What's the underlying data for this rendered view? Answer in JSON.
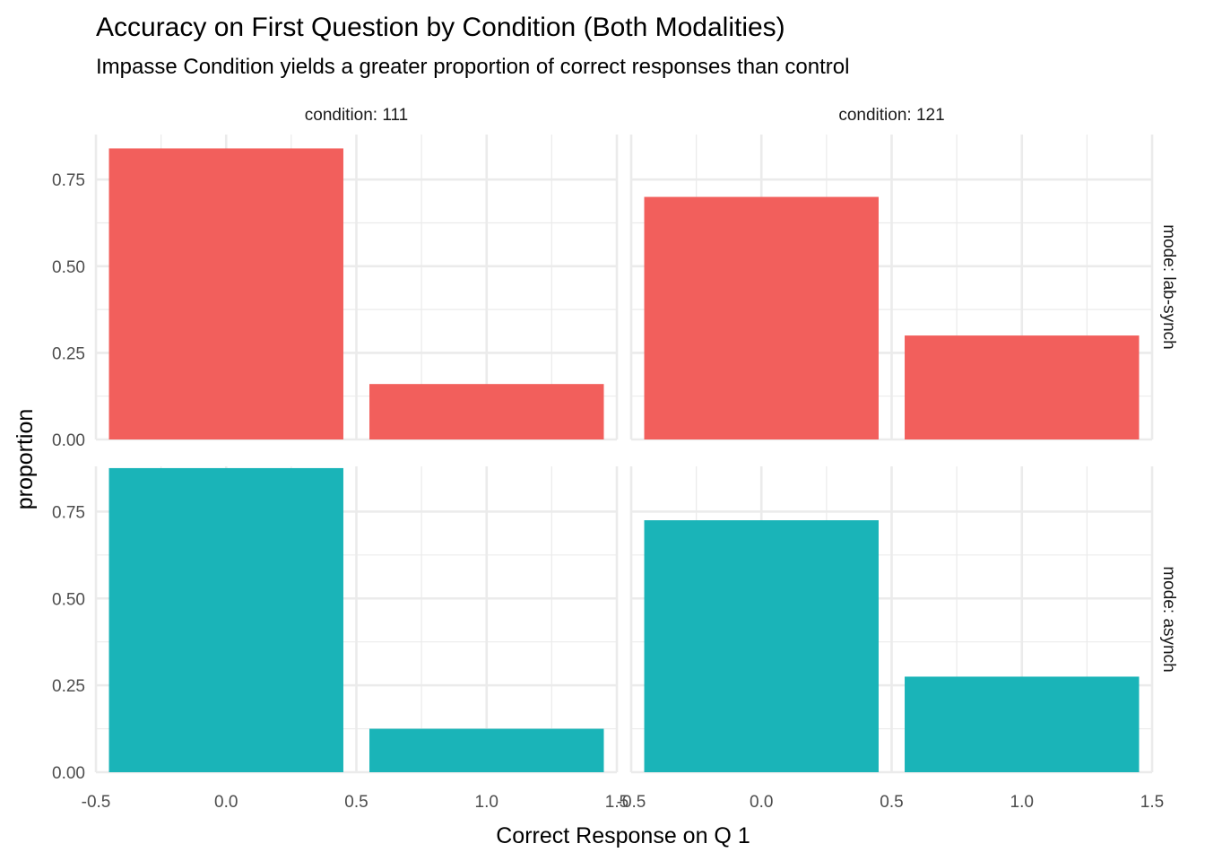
{
  "chart_data": {
    "type": "bar",
    "title": "Accuracy on First Question by Condition (Both Modalities)",
    "subtitle": "Impasse Condition yields a greater proportion of correct responses than control",
    "xlabel": "Correct Response on Q 1",
    "ylabel": "proportion",
    "xlim": [
      -0.5,
      1.5
    ],
    "ylim": [
      0,
      0.88
    ],
    "x_ticks": [
      -0.5,
      0.0,
      0.5,
      1.0,
      1.5
    ],
    "x_tick_labels": [
      "-0.5",
      "0.0",
      "0.5",
      "1.0",
      "1.5"
    ],
    "y_ticks": [
      0.0,
      0.25,
      0.5,
      0.75
    ],
    "y_tick_labels": [
      "0.00",
      "0.25",
      "0.50",
      "0.75"
    ],
    "grid": true,
    "legend": "none",
    "columns": [
      {
        "label": "condition: 111"
      },
      {
        "label": "condition: 121"
      }
    ],
    "rows": [
      {
        "label": "mode: lab-synch",
        "color": "#F25F5C"
      },
      {
        "label": "mode: asynch",
        "color": "#1AB4B8"
      }
    ],
    "panels": [
      {
        "condition": "condition: 111",
        "mode": "mode: lab-synch",
        "x": [
          0,
          1
        ],
        "values": [
          0.84,
          0.16
        ]
      },
      {
        "condition": "condition: 121",
        "mode": "mode: lab-synch",
        "x": [
          0,
          1
        ],
        "values": [
          0.7,
          0.3
        ]
      },
      {
        "condition": "condition: 111",
        "mode": "mode: asynch",
        "x": [
          0,
          1
        ],
        "values": [
          0.875,
          0.125
        ]
      },
      {
        "condition": "condition: 121",
        "mode": "mode: asynch",
        "x": [
          0,
          1
        ],
        "values": [
          0.725,
          0.275
        ]
      }
    ]
  }
}
